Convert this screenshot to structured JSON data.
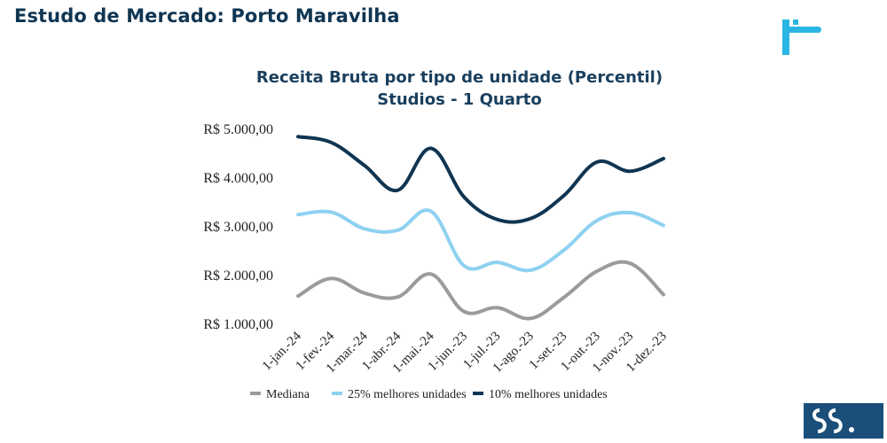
{
  "header": {
    "title": "Estudo de Mercado: Porto Maravilha"
  },
  "icons": {
    "top_logo": "brand-logo-icon",
    "bottom_logo": "brand-monogram-icon"
  },
  "colors": {
    "title": "#0f3552",
    "mediana": "#9b9b9b",
    "p25": "#8ed1f0",
    "p10": "#0f3552"
  },
  "chart_data": {
    "type": "line",
    "title": "Receita Bruta por tipo de unidade (Percentil)",
    "subtitle": "Studios - 1 Quarto",
    "categories": [
      "1-jan.-24",
      "1-fev.-24",
      "1-mar.-24",
      "1-abr.-24",
      "1-mai.-24",
      "1-jun.-23",
      "1-jul.-23",
      "1-ago.-23",
      "1-set.-23",
      "1-out.-23",
      "1-nov.-23",
      "1-dez.-23"
    ],
    "y_tick_labels": [
      "R$ 1.000,00",
      "R$ 2.000,00",
      "R$ 3.000,00",
      "R$ 4.000,00",
      "R$ 5.000,00"
    ],
    "y_ticks": [
      1000,
      2000,
      3000,
      4000,
      5000
    ],
    "ylim": [
      1000,
      5000
    ],
    "grid": false,
    "legend_position": "bottom",
    "series": [
      {
        "name": "Mediana",
        "color": "#9b9b9b",
        "values": [
          1580,
          1940,
          1640,
          1560,
          2030,
          1260,
          1340,
          1120,
          1550,
          2090,
          2250,
          1610
        ]
      },
      {
        "name": "25% melhores unidades",
        "color": "#8ed1f0",
        "values": [
          3250,
          3300,
          2960,
          2930,
          3320,
          2200,
          2270,
          2110,
          2520,
          3130,
          3290,
          3030
        ]
      },
      {
        "name": "10% melhores unidades",
        "color": "#0f3552",
        "values": [
          4850,
          4730,
          4260,
          3750,
          4610,
          3610,
          3150,
          3170,
          3640,
          4330,
          4140,
          4400
        ]
      }
    ]
  }
}
